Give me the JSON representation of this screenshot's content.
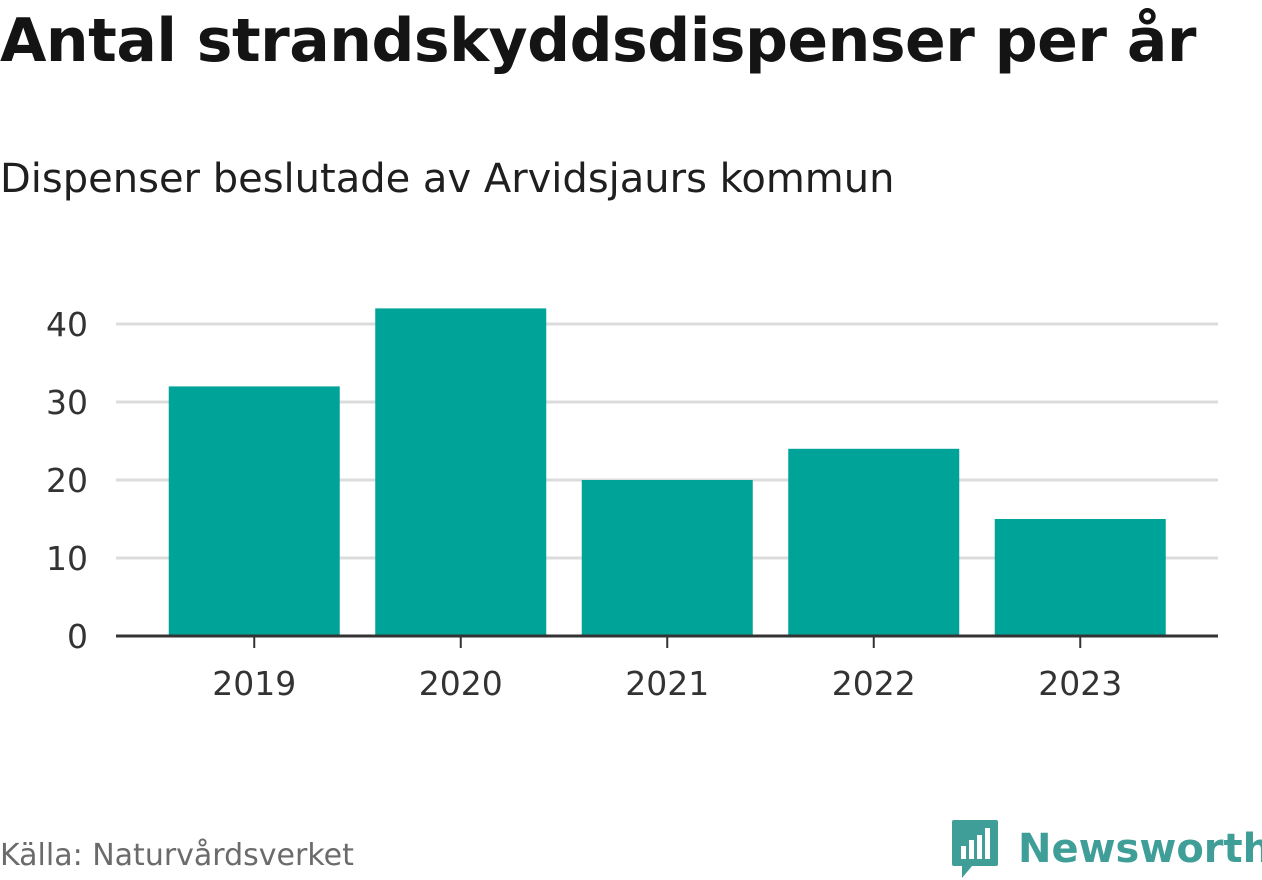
{
  "title": "Antal strandskyddsdispenser per år",
  "subtitle": "Dispenser beslutade av Arvidsjaurs kommun",
  "source": "Källa: Naturvårdsverket",
  "brand": {
    "name": "Newsworthy",
    "icon": "newsworthy-logo-icon",
    "color": "#3f9e97"
  },
  "chart_data": {
    "type": "bar",
    "title": "Antal strandskyddsdispenser per år",
    "subtitle": "Dispenser beslutade av Arvidsjaurs kommun",
    "categories": [
      "2019",
      "2020",
      "2021",
      "2022",
      "2023"
    ],
    "values": [
      32,
      42,
      20,
      24,
      15
    ],
    "xlabel": "",
    "ylabel": "",
    "ylim": [
      0,
      40
    ],
    "yticks": [
      0,
      10,
      20,
      30,
      40
    ],
    "grid": true,
    "bar_color": "#00a398",
    "grid_color": "#dcdcdc",
    "axis_color": "#333333"
  }
}
